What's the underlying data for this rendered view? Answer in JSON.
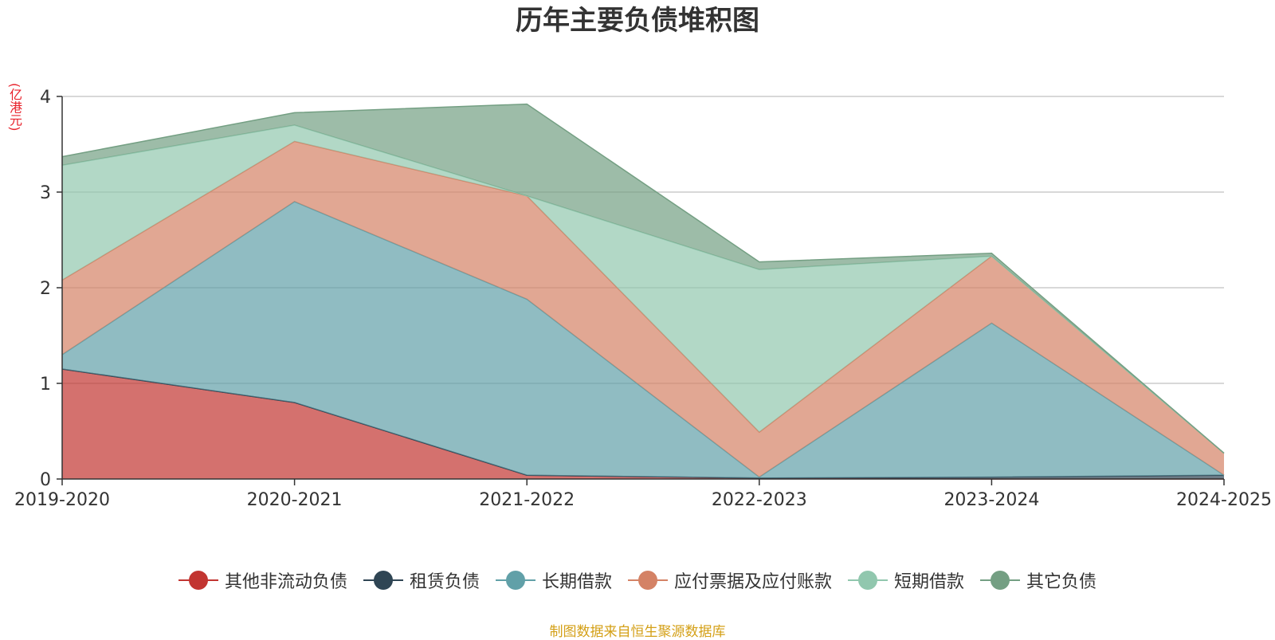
{
  "chart_data": {
    "type": "area",
    "stacked": true,
    "title": "历年主要负债堆积图",
    "ylabel": "(亿港元)",
    "categories": [
      "2019-2020",
      "2020-2021",
      "2021-2022",
      "2022-2023",
      "2023-2024",
      "2024-2025"
    ],
    "ylim": [
      0,
      4
    ],
    "yticks": [
      "0",
      "1",
      "2",
      "3",
      "4"
    ],
    "grid": true,
    "legend_position": "bottom",
    "series": [
      {
        "name": "其他非流动负债",
        "color": "#c23531",
        "values": [
          1.15,
          0.8,
          0.04,
          0.01,
          0.0,
          0.0
        ]
      },
      {
        "name": "租赁负债",
        "color": "#2f4554",
        "values": [
          0.0,
          0.0,
          0.0,
          0.0,
          0.02,
          0.04
        ]
      },
      {
        "name": "长期借款",
        "color": "#61a0a8",
        "values": [
          0.15,
          2.1,
          1.84,
          0.01,
          1.61,
          0.0
        ]
      },
      {
        "name": "应付票据及应付账款",
        "color": "#d48265",
        "values": [
          0.78,
          0.63,
          1.08,
          0.47,
          0.7,
          0.23
        ]
      },
      {
        "name": "短期借款",
        "color": "#91c7ae",
        "values": [
          1.2,
          0.17,
          0.0,
          1.7,
          0.0,
          0.0
        ]
      },
      {
        "name": "其它负债",
        "color": "#749f83",
        "values": [
          0.09,
          0.13,
          0.96,
          0.08,
          0.03,
          0.0
        ]
      }
    ]
  },
  "footer": {
    "source": "制图数据来自恒生聚源数据库"
  }
}
